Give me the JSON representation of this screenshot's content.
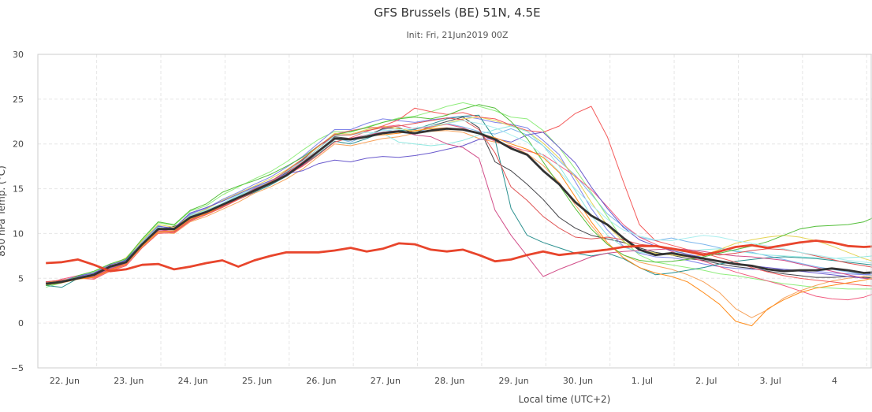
{
  "chart_data": {
    "type": "line",
    "title": "GFS Brussels (BE) 51N, 4.5E",
    "subtitle": "Init: Fri, 21Jun2019 00Z",
    "xlabel": "Local time (UTC+2)",
    "ylabel": "850 hPa Temp. (°C)",
    "ylim": [
      -5,
      30
    ],
    "yticks": [
      "−5",
      "0",
      "5",
      "10",
      "15",
      "20",
      "25",
      "30"
    ],
    "xlim": [
      "21 Jun 2019 02:00",
      "4 Jul 2019 02:00"
    ],
    "xticks": [
      "22. Jun",
      "23. Jun",
      "24. Jun",
      "25. Jun",
      "26. Jun",
      "27. Jun",
      "28. Jun",
      "29. Jun",
      "30. Jun",
      "1. Jul",
      "2. Jul",
      "3. Jul",
      "4"
    ],
    "grid": true,
    "x_hours_from_init": [
      3,
      9,
      15,
      21,
      27,
      33,
      39,
      45,
      51,
      57,
      63,
      69,
      75,
      81,
      87,
      93,
      99,
      105,
      111,
      117,
      123,
      129,
      135,
      141,
      147,
      153,
      159,
      165,
      171,
      177,
      183,
      189,
      195,
      201,
      207,
      213,
      219,
      225,
      231,
      237,
      243,
      249,
      255,
      261,
      267,
      273,
      279,
      285,
      291,
      297,
      303,
      309,
      315
    ],
    "series": [
      {
        "color": "#e8452c",
        "width": 2.8,
        "values": [
          6.7,
          6.8,
          7.1,
          6.5,
          5.8,
          6.0,
          6.5,
          6.6,
          6.0,
          6.3,
          6.7,
          7.0,
          6.3,
          7.0,
          7.5,
          7.9,
          7.9,
          7.9,
          8.1,
          8.4,
          8.0,
          8.3,
          8.9,
          8.8,
          8.2,
          8.0,
          8.2,
          7.6,
          6.9,
          7.1,
          7.6,
          8.0,
          7.6,
          7.8,
          8.0,
          8.2,
          8.5,
          8.6,
          8.6,
          8.3,
          8.0,
          7.6,
          8.0,
          8.5,
          8.7,
          8.4,
          8.7,
          9.0,
          9.2,
          9.0,
          8.6,
          8.5,
          8.6
        ]
      },
      {
        "color": "#333333",
        "width": 2.8,
        "values": [
          4.4,
          4.6,
          5.0,
          5.4,
          6.3,
          6.8,
          8.8,
          10.5,
          10.5,
          11.8,
          12.4,
          13.2,
          14.0,
          14.8,
          15.6,
          16.5,
          17.8,
          19.2,
          20.6,
          20.5,
          20.8,
          21.2,
          21.4,
          21.2,
          21.5,
          21.7,
          21.6,
          21.2,
          20.5,
          19.5,
          18.8,
          17.0,
          15.5,
          13.5,
          12.0,
          11.0,
          9.5,
          8.2,
          7.6,
          7.8,
          7.5,
          7.2,
          6.9,
          6.6,
          6.4,
          6.0,
          5.8,
          5.9,
          5.9,
          6.1,
          5.9,
          5.6,
          5.7
        ]
      },
      {
        "color": "#7cb5ec",
        "width": 1,
        "values": [
          4.4,
          4.6,
          5.1,
          5.3,
          6.1,
          6.9,
          9.1,
          10.9,
          10.4,
          12.1,
          12.6,
          13.3,
          14.2,
          15.1,
          15.8,
          16.6,
          17.5,
          19.2,
          20.7,
          20.2,
          21.0,
          21.6,
          21.3,
          21.1,
          21.9,
          22.3,
          21.9,
          21.4,
          21.1,
          21.7,
          21.0,
          19.8,
          18.1,
          16.5,
          14.4,
          12.2,
          10.8,
          9.6,
          9.2,
          9.5,
          9.1,
          8.8,
          8.4,
          8.0,
          7.9,
          7.5,
          7.1,
          6.7,
          6.3,
          6.0,
          5.7,
          5.4,
          5.3
        ]
      },
      {
        "color": "#434348",
        "width": 1,
        "values": [
          4.6,
          4.7,
          5.2,
          5.3,
          6.4,
          6.8,
          8.9,
          10.4,
          10.8,
          11.6,
          12.2,
          13.0,
          13.8,
          14.6,
          15.8,
          16.8,
          18.2,
          19.8,
          20.8,
          20.6,
          20.9,
          21.7,
          21.8,
          21.2,
          22.0,
          22.5,
          23.0,
          21.8,
          18.0,
          17.0,
          15.5,
          13.8,
          11.8,
          10.6,
          9.8,
          9.4,
          9.0,
          8.4,
          7.9,
          7.6,
          7.2,
          7.0,
          6.6,
          6.3,
          6.1,
          5.8,
          5.5,
          5.3,
          5.1,
          5.1,
          5.2,
          5.1,
          5.0
        ]
      },
      {
        "color": "#90ed7d",
        "width": 1,
        "values": [
          4.0,
          4.5,
          5.2,
          5.7,
          6.6,
          7.1,
          9.3,
          11.2,
          10.9,
          12.5,
          13.1,
          14.3,
          15.2,
          16.1,
          16.9,
          18.0,
          19.3,
          20.5,
          21.4,
          21.3,
          21.9,
          22.4,
          22.9,
          23.1,
          23.6,
          24.2,
          24.6,
          24.2,
          23.7,
          23.0,
          22.8,
          21.5,
          19.6,
          17.2,
          14.6,
          11.9,
          9.2,
          7.6,
          6.8,
          6.5,
          6.2,
          5.9,
          5.5,
          5.3,
          5.0,
          4.7,
          4.4,
          4.2,
          4.0,
          3.9,
          3.8,
          3.8,
          3.8
        ]
      },
      {
        "color": "#f7a35c",
        "width": 1,
        "values": [
          4.3,
          4.7,
          5.0,
          5.1,
          6.0,
          6.6,
          8.5,
          10.1,
          10.0,
          11.3,
          11.9,
          12.7,
          13.5,
          14.5,
          15.2,
          16.1,
          17.2,
          18.6,
          20.0,
          19.8,
          20.2,
          20.6,
          20.8,
          21.2,
          21.4,
          21.5,
          21.3,
          20.6,
          20.2,
          19.8,
          18.9,
          17.6,
          15.7,
          13.2,
          10.9,
          8.8,
          7.6,
          6.8,
          6.4,
          6.0,
          5.4,
          4.6,
          3.4,
          1.6,
          0.6,
          1.5,
          2.8,
          3.6,
          4.2,
          4.7,
          5.0,
          5.2,
          5.3
        ]
      },
      {
        "color": "#8085e9",
        "width": 1,
        "values": [
          4.5,
          4.7,
          5.3,
          5.6,
          6.2,
          7.0,
          8.9,
          10.6,
          10.6,
          12.2,
          12.8,
          13.8,
          14.6,
          15.5,
          16.3,
          17.4,
          18.6,
          20.1,
          21.6,
          21.6,
          22.3,
          22.8,
          22.6,
          22.4,
          22.7,
          22.9,
          23.1,
          22.8,
          22.4,
          22.2,
          21.8,
          20.4,
          18.8,
          15.8,
          12.8,
          10.4,
          8.6,
          7.8,
          7.4,
          7.3,
          7.0,
          6.6,
          6.3,
          6.1,
          6.0,
          6.0,
          6.0,
          5.9,
          5.8,
          5.6,
          5.5,
          5.4,
          5.6
        ]
      },
      {
        "color": "#f15c80",
        "width": 1,
        "values": [
          4.4,
          4.9,
          5.3,
          5.0,
          5.9,
          6.5,
          8.7,
          10.5,
          10.2,
          11.9,
          12.5,
          13.2,
          14.0,
          15.0,
          15.8,
          16.7,
          18.0,
          19.5,
          21.1,
          21.5,
          21.8,
          21.9,
          22.1,
          21.7,
          21.9,
          22.2,
          21.8,
          21.1,
          20.3,
          19.7,
          19.2,
          18.8,
          17.6,
          16.4,
          14.9,
          13.0,
          11.0,
          9.6,
          8.8,
          8.0,
          7.4,
          6.9,
          6.3,
          5.7,
          5.2,
          4.7,
          4.2,
          3.6,
          3.0,
          2.7,
          2.6,
          2.9,
          3.5
        ]
      },
      {
        "color": "#2b908f",
        "width": 1,
        "values": [
          4.2,
          4.0,
          5.0,
          5.5,
          6.2,
          7.1,
          9.0,
          10.7,
          10.4,
          11.8,
          12.4,
          13.2,
          14.2,
          14.6,
          15.4,
          16.4,
          17.6,
          18.9,
          20.3,
          20.0,
          20.6,
          21.3,
          21.5,
          21.6,
          22.2,
          22.8,
          23.1,
          23.2,
          20.5,
          12.8,
          9.8,
          9.0,
          8.4,
          7.8,
          7.5,
          7.8,
          7.2,
          6.2,
          5.4,
          5.6,
          5.9,
          6.2,
          6.6,
          6.9,
          7.1,
          7.3,
          7.4,
          7.3,
          7.2,
          7.0,
          6.8,
          6.6,
          6.4
        ]
      },
      {
        "color": "#e4d354",
        "width": 1,
        "values": [
          4.5,
          4.8,
          5.1,
          5.4,
          6.3,
          7.3,
          9.2,
          11.0,
          10.7,
          12.0,
          12.7,
          13.7,
          14.5,
          15.3,
          16.1,
          17.1,
          18.3,
          19.7,
          21.2,
          21.1,
          21.6,
          22.0,
          21.7,
          21.4,
          21.8,
          22.3,
          22.8,
          23.0,
          22.6,
          22.0,
          21.4,
          20.1,
          18.4,
          16.3,
          13.5,
          10.9,
          9.1,
          8.2,
          7.8,
          7.6,
          7.4,
          7.6,
          8.2,
          8.9,
          9.3,
          9.6,
          9.8,
          9.6,
          9.2,
          8.6,
          7.9,
          7.2,
          6.7
        ]
      },
      {
        "color": "#f45b5b",
        "width": 1,
        "values": [
          4.6,
          4.8,
          5.0,
          4.9,
          5.8,
          6.4,
          8.4,
          10.0,
          10.1,
          11.4,
          12.1,
          12.9,
          13.8,
          14.7,
          15.6,
          16.5,
          17.5,
          18.8,
          20.2,
          20.7,
          21.4,
          22.0,
          22.7,
          24.0,
          23.6,
          23.3,
          23.5,
          23.0,
          22.8,
          22.1,
          21.5,
          21.3,
          22.0,
          23.4,
          24.2,
          20.8,
          15.8,
          11.0,
          9.2,
          8.7,
          8.2,
          7.8,
          7.3,
          6.8,
          6.2,
          5.7,
          5.3,
          5.0,
          4.8,
          4.6,
          4.4,
          4.2,
          4.1
        ]
      },
      {
        "color": "#91e8e1",
        "width": 1,
        "values": [
          4.3,
          4.6,
          5.1,
          5.5,
          6.2,
          6.9,
          8.9,
          10.5,
          10.5,
          12.0,
          12.6,
          13.4,
          14.3,
          15.0,
          15.8,
          16.9,
          18.1,
          19.5,
          20.9,
          21.0,
          21.3,
          21.2,
          20.2,
          20.0,
          19.8,
          20.0,
          20.4,
          21.0,
          21.6,
          22.0,
          21.4,
          19.8,
          17.5,
          14.8,
          12.0,
          9.8,
          8.5,
          7.9,
          7.7,
          7.8,
          8.0,
          8.2,
          8.3,
          8.1,
          7.8,
          7.6,
          7.5,
          7.4,
          7.3,
          7.2,
          7.3,
          7.4,
          7.6
        ]
      },
      {
        "color": "#6a5acd",
        "width": 1,
        "values": [
          4.4,
          4.7,
          5.2,
          5.6,
          6.5,
          7.0,
          9.0,
          10.8,
          10.6,
          12.3,
          12.9,
          13.6,
          14.4,
          15.2,
          15.9,
          16.7,
          17.0,
          17.8,
          18.2,
          18.0,
          18.4,
          18.6,
          18.5,
          18.7,
          19.0,
          19.4,
          19.8,
          20.5,
          20.6,
          20.2,
          21.0,
          21.3,
          19.6,
          17.9,
          15.2,
          12.8,
          10.7,
          9.3,
          8.6,
          8.1,
          7.7,
          7.3,
          6.9,
          6.6,
          6.4,
          6.2,
          6.0,
          5.8,
          5.6,
          5.4,
          5.2,
          5.0,
          4.9
        ]
      },
      {
        "color": "#d24f8a",
        "width": 1,
        "values": [
          4.5,
          4.6,
          5.0,
          5.3,
          6.1,
          6.7,
          8.8,
          10.3,
          10.3,
          11.7,
          12.3,
          13.1,
          14.1,
          15.0,
          15.7,
          16.5,
          17.6,
          19.1,
          20.5,
          20.6,
          21.0,
          21.3,
          21.5,
          21.0,
          20.8,
          20.0,
          19.6,
          18.4,
          12.6,
          9.8,
          7.5,
          5.2,
          6.0,
          6.7,
          7.4,
          7.8,
          8.0,
          8.1,
          8.2,
          8.3,
          8.2,
          8.0,
          7.7,
          7.5,
          7.4,
          7.2,
          7.0,
          6.6,
          6.2,
          5.8,
          5.4,
          5.0,
          4.8
        ]
      },
      {
        "color": "#55bf3b",
        "width": 1,
        "values": [
          4.2,
          4.5,
          5.3,
          5.8,
          6.6,
          7.2,
          9.4,
          11.3,
          11.0,
          12.6,
          13.3,
          14.6,
          15.3,
          15.9,
          16.6,
          17.5,
          18.5,
          19.8,
          21.0,
          21.4,
          21.8,
          22.4,
          22.8,
          23.0,
          22.8,
          23.2,
          23.9,
          24.4,
          24.0,
          22.5,
          20.6,
          18.0,
          15.4,
          12.8,
          10.5,
          8.8,
          7.6,
          7.0,
          6.8,
          6.9,
          7.1,
          7.4,
          7.8,
          8.2,
          8.6,
          9.1,
          9.8,
          10.5,
          10.8,
          10.9,
          11.0,
          11.3,
          12.1
        ]
      },
      {
        "color": "#df5353",
        "width": 1,
        "values": [
          4.6,
          4.8,
          5.0,
          5.2,
          6.0,
          6.6,
          8.6,
          10.2,
          10.2,
          11.5,
          12.2,
          13.0,
          13.9,
          14.8,
          15.8,
          17.0,
          18.3,
          19.8,
          21.0,
          21.0,
          21.5,
          21.8,
          22.0,
          22.3,
          22.6,
          22.9,
          22.7,
          21.6,
          19.0,
          15.2,
          13.7,
          11.9,
          10.6,
          9.6,
          9.4,
          9.6,
          9.3,
          8.8,
          8.6,
          8.4,
          8.1,
          7.8,
          7.6,
          7.8,
          8.1,
          8.3,
          8.2,
          7.9,
          7.5,
          7.1,
          6.7,
          6.4,
          6.1
        ]
      },
      {
        "color": "#aaeeee",
        "width": 1,
        "values": [
          4.4,
          4.7,
          5.1,
          5.4,
          6.3,
          6.9,
          9.0,
          10.7,
          10.4,
          11.9,
          12.5,
          13.4,
          14.2,
          14.9,
          15.7,
          16.6,
          17.8,
          19.3,
          20.5,
          20.4,
          21.0,
          21.5,
          21.6,
          21.8,
          22.0,
          22.3,
          22.6,
          22.3,
          21.8,
          21.0,
          20.2,
          18.7,
          16.9,
          15.0,
          13.2,
          11.6,
          10.4,
          9.7,
          9.3,
          9.2,
          9.5,
          9.8,
          9.6,
          9.2,
          8.9,
          8.6,
          8.3,
          7.9,
          7.6,
          7.3,
          7.0,
          6.8,
          6.6
        ]
      },
      {
        "color": "#ff8c1a",
        "width": 1,
        "values": [
          4.3,
          4.5,
          4.9,
          5.1,
          5.9,
          6.6,
          8.6,
          10.2,
          10.3,
          11.6,
          12.2,
          13.1,
          14.0,
          14.9,
          15.7,
          16.6,
          17.8,
          19.2,
          20.6,
          20.5,
          20.9,
          21.0,
          21.2,
          21.5,
          21.7,
          21.8,
          21.6,
          21.2,
          20.7,
          20.0,
          19.4,
          18.5,
          16.8,
          14.1,
          11.3,
          9.0,
          7.3,
          6.2,
          5.6,
          5.2,
          4.6,
          3.4,
          2.1,
          0.2,
          -0.3,
          1.6,
          2.6,
          3.4,
          3.9,
          4.2,
          4.5,
          4.8,
          5.2
        ]
      }
    ]
  }
}
